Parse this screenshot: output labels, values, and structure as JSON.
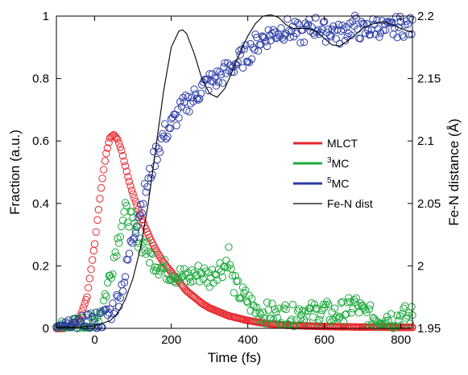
{
  "chart_data": {
    "type": "scatter",
    "xlabel": "Time (fs)",
    "ylabel": "Fraction (a.u.)",
    "y2label": "Fe-N distance (Å)",
    "xlim": [
      -100,
      830
    ],
    "ylim": [
      0,
      1
    ],
    "y2lim": [
      1.95,
      2.2
    ],
    "xticks": [
      "0",
      "200",
      "400",
      "600",
      "800"
    ],
    "xtick_values": [
      0,
      200,
      400,
      600,
      800
    ],
    "yticks": [
      "0",
      "0.2",
      "0.4",
      "0.6",
      "0.8",
      "1"
    ],
    "ytick_values": [
      0,
      0.2,
      0.4,
      0.6,
      0.8,
      1
    ],
    "y2ticks": [
      "1.95",
      "2",
      "2.05",
      "2.1",
      "2.15",
      "2.2"
    ],
    "y2tick_values": [
      1.95,
      2.0,
      2.05,
      2.1,
      2.15,
      2.2
    ],
    "grid": false,
    "legend_position": "right-middle",
    "legend": [
      {
        "prefix": "",
        "sup": "",
        "main": "MLCT",
        "color": "#e8262b",
        "marker": "line"
      },
      {
        "prefix": "",
        "sup": "3",
        "main": "MC",
        "color": "#1aa83a",
        "marker": "line"
      },
      {
        "prefix": "",
        "sup": "5",
        "main": "MC",
        "color": "#2b3aa5",
        "marker": "line"
      },
      {
        "prefix": "",
        "sup": "",
        "main": "Fe-N dist",
        "color": "#000000",
        "marker": "thin-line"
      }
    ],
    "series": [
      {
        "name": "MLCT",
        "color": "#e8262b",
        "axis": "left",
        "marker": "circle",
        "x": [
          -100,
          -80,
          -60,
          -40,
          -20,
          0,
          10,
          20,
          30,
          40,
          50,
          60,
          70,
          80,
          90,
          100,
          120,
          140,
          160,
          180,
          200,
          220,
          240,
          260,
          280,
          300,
          350,
          400,
          450,
          500,
          550,
          600,
          650,
          700,
          750,
          800,
          830
        ],
        "y": [
          0.0,
          0.0,
          0.01,
          0.03,
          0.1,
          0.27,
          0.38,
          0.48,
          0.56,
          0.61,
          0.62,
          0.605,
          0.57,
          0.52,
          0.47,
          0.43,
          0.36,
          0.3,
          0.25,
          0.21,
          0.18,
          0.15,
          0.12,
          0.1,
          0.08,
          0.065,
          0.04,
          0.025,
          0.015,
          0.01,
          0.008,
          0.006,
          0.005,
          0.004,
          0.004,
          0.003,
          0.003
        ]
      },
      {
        "name": "3MC",
        "color": "#1aa83a",
        "axis": "left",
        "marker": "circle",
        "x": [
          -100,
          -60,
          -20,
          0,
          20,
          40,
          60,
          70,
          80,
          90,
          100,
          110,
          120,
          140,
          160,
          180,
          200,
          220,
          240,
          260,
          280,
          300,
          320,
          340,
          350,
          360,
          380,
          400,
          420,
          440,
          460,
          480,
          500,
          520,
          540,
          560,
          580,
          600,
          620,
          640,
          660,
          680,
          700,
          720,
          740,
          760,
          780,
          800,
          830
        ],
        "y": [
          0.0,
          0.0,
          0.01,
          0.02,
          0.07,
          0.17,
          0.28,
          0.34,
          0.37,
          0.36,
          0.33,
          0.3,
          0.28,
          0.24,
          0.21,
          0.19,
          0.18,
          0.17,
          0.16,
          0.17,
          0.18,
          0.16,
          0.19,
          0.2,
          0.24,
          0.15,
          0.11,
          0.09,
          0.06,
          0.05,
          0.05,
          0.04,
          0.05,
          0.04,
          0.06,
          0.05,
          0.05,
          0.06,
          0.04,
          0.05,
          0.06,
          0.08,
          0.05,
          0.04,
          0.03,
          0.04,
          0.03,
          0.04,
          0.04
        ]
      },
      {
        "name": "5MC",
        "color": "#2b3aa5",
        "axis": "left",
        "marker": "circle",
        "x": [
          -100,
          -60,
          -20,
          0,
          20,
          40,
          60,
          80,
          100,
          120,
          140,
          160,
          180,
          200,
          220,
          240,
          260,
          280,
          300,
          320,
          340,
          360,
          380,
          400,
          420,
          440,
          460,
          480,
          500,
          520,
          540,
          560,
          580,
          600,
          620,
          640,
          660,
          680,
          700,
          720,
          740,
          760,
          780,
          800,
          830
        ],
        "y": [
          0.0,
          0.0,
          0.01,
          0.02,
          0.03,
          0.05,
          0.09,
          0.17,
          0.3,
          0.39,
          0.47,
          0.56,
          0.62,
          0.65,
          0.69,
          0.72,
          0.74,
          0.77,
          0.79,
          0.8,
          0.82,
          0.84,
          0.86,
          0.88,
          0.91,
          0.93,
          0.94,
          0.95,
          0.96,
          0.95,
          0.94,
          0.96,
          0.97,
          0.95,
          0.96,
          0.94,
          0.96,
          0.97,
          0.95,
          0.96,
          0.97,
          0.95,
          0.96,
          0.97,
          0.96
        ]
      },
      {
        "name": "Fe-N dist",
        "color": "#000000",
        "axis": "right",
        "marker": "line",
        "x": [
          -100,
          -40,
          0,
          40,
          60,
          80,
          100,
          120,
          140,
          160,
          180,
          200,
          220,
          230,
          240,
          260,
          280,
          300,
          320,
          340,
          360,
          380,
          400,
          420,
          440,
          460,
          480,
          500,
          520,
          540,
          560,
          580,
          600,
          620,
          640,
          660,
          680,
          700,
          720,
          740,
          760,
          780,
          800,
          830
        ],
        "y": [
          1.951,
          1.951,
          1.952,
          1.956,
          1.962,
          1.973,
          1.99,
          2.015,
          2.05,
          2.095,
          2.14,
          2.175,
          2.188,
          2.189,
          2.186,
          2.17,
          2.15,
          2.138,
          2.135,
          2.142,
          2.156,
          2.171,
          2.184,
          2.194,
          2.2,
          2.201,
          2.199,
          2.193,
          2.19,
          2.19,
          2.19,
          2.188,
          2.182,
          2.177,
          2.176,
          2.18,
          2.185,
          2.19,
          2.193,
          2.195,
          2.195,
          2.193,
          2.19,
          2.187
        ]
      }
    ]
  }
}
